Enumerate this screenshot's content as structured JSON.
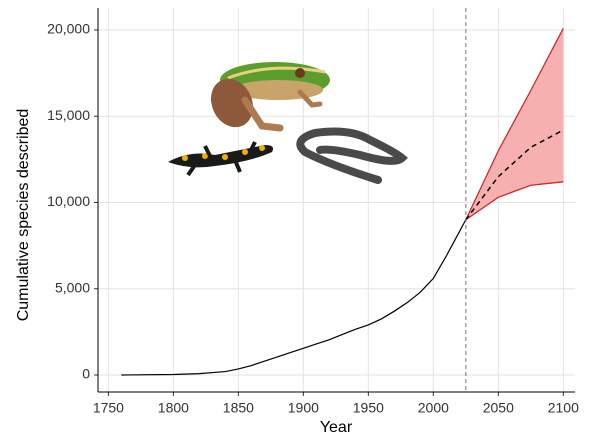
{
  "chart_data": {
    "type": "line",
    "x_label": "Year",
    "y_label": "Cumulative species described",
    "xlim": [
      1742,
      2109
    ],
    "ylim": [
      -985,
      21275
    ],
    "xticks": [
      1750,
      1800,
      1850,
      1900,
      1950,
      2000,
      2050,
      2100
    ],
    "yticks": [
      0,
      {
        "value": 5000,
        "label": "5,000"
      },
      {
        "value": 10000,
        "label": "10,000"
      },
      {
        "value": 15000,
        "label": "15,000"
      },
      {
        "value": 20000,
        "label": "20,000"
      }
    ],
    "grid": true,
    "color": "#000000",
    "x": [
      1760,
      1800,
      1820,
      1840,
      1850,
      1860,
      1870,
      1880,
      1890,
      1900,
      1910,
      1920,
      1930,
      1940,
      1950,
      1960,
      1970,
      1980,
      1990,
      2000,
      2010,
      2020,
      2025
    ],
    "values": [
      0,
      30,
      80,
      200,
      350,
      550,
      800,
      1050,
      1300,
      1550,
      1800,
      2050,
      2350,
      2650,
      2900,
      3250,
      3700,
      4200,
      4800,
      5600,
      6900,
      8300,
      9000
    ],
    "vline": 2025,
    "projection": {
      "x": [
        2025,
        2050,
        2075,
        2100
      ],
      "mean": [
        9000,
        11500,
        13200,
        14200
      ],
      "upper": [
        9000,
        13000,
        16500,
        20100
      ],
      "lower": [
        9000,
        10300,
        11000,
        11200
      ],
      "color": "#cc2a2a",
      "fill": "#f7b0b0"
    }
  }
}
